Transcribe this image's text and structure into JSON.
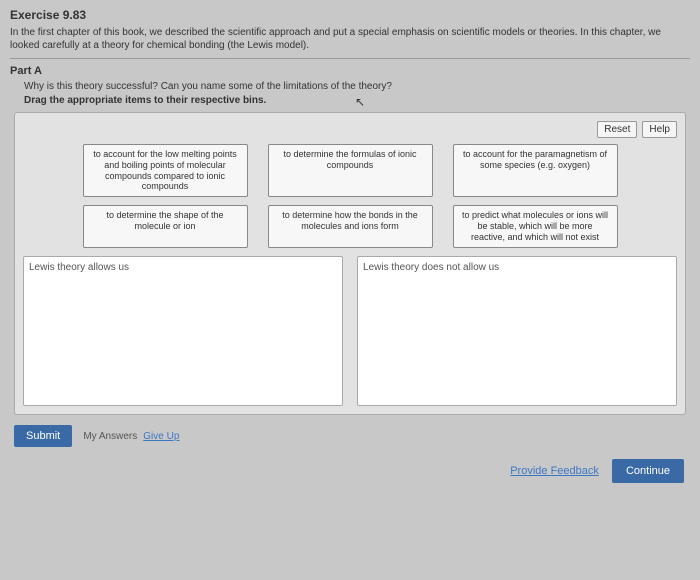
{
  "exercise": {
    "title": "Exercise 9.83",
    "description": "In the first chapter of this book, we described the scientific approach and put a special emphasis on scientific models or theories. In this chapter, we looked carefully at a theory for chemical bonding (the Lewis model)."
  },
  "partA": {
    "title": "Part A",
    "question": "Why is this theory successful? Can you name some of the limitations of the theory?",
    "instruction": "Drag the appropriate items to their respective bins."
  },
  "buttons": {
    "reset": "Reset",
    "help": "Help",
    "submit": "Submit",
    "myAnswers": "My Answers",
    "giveUp": "Give Up",
    "feedback": "Provide Feedback",
    "continue": "Continue"
  },
  "items": {
    "row1": [
      "to account for the low melting points and boiling points of molecular compounds compared to ionic compounds",
      "to determine the formulas of ionic compounds",
      "to account for the paramagnetism of some species (e.g. oxygen)"
    ],
    "row2": [
      "to determine the shape of the molecule or ion",
      "to determine how the bonds in the molecules and ions form",
      "to predict what molecules or ions will be stable, which will be more reactive, and which will not exist"
    ]
  },
  "bins": {
    "left": "Lewis theory allows us",
    "right": "Lewis theory does not allow us"
  }
}
